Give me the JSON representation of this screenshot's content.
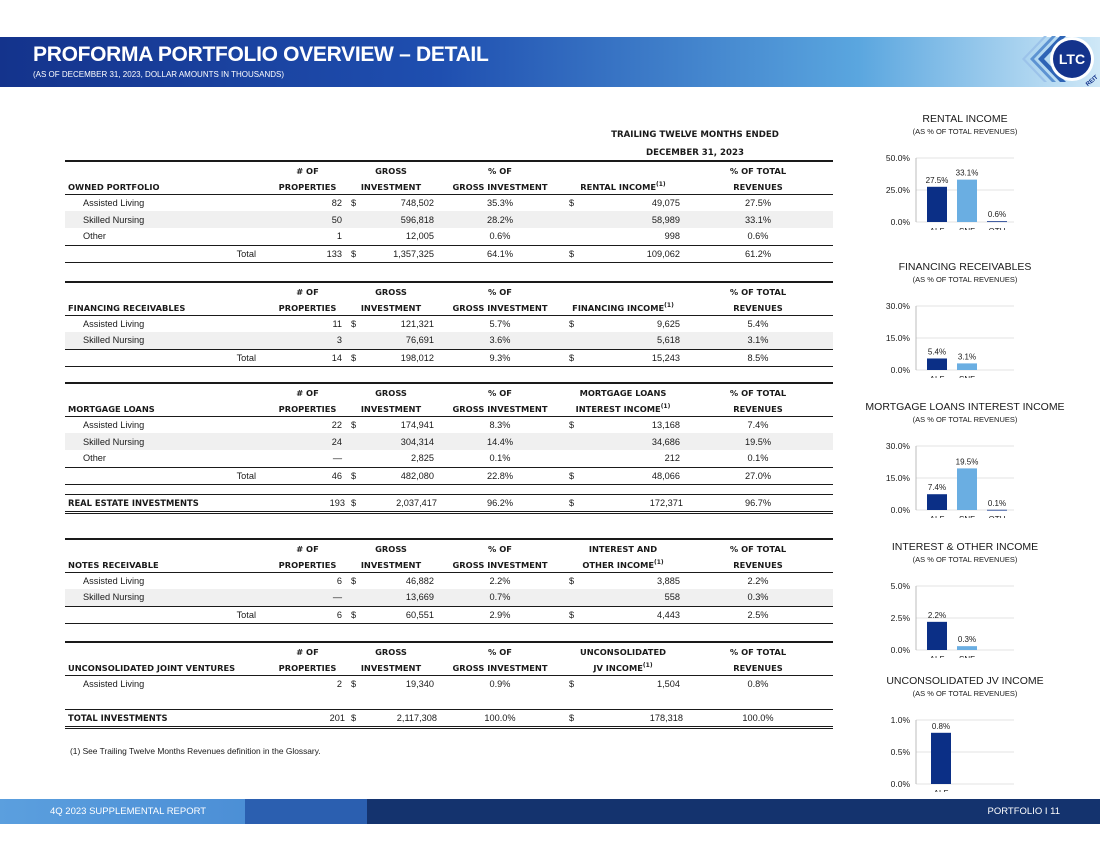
{
  "header": {
    "title": "PROFORMA PORTFOLIO OVERVIEW – DETAIL",
    "subtitle": "(AS OF DECEMBER 31, 2023, DOLLAR AMOUNTS IN THOUSANDS)",
    "logo_text": "LTC",
    "logo_sub": "REIT"
  },
  "ttm_header": [
    "TRAILING TWELVE MONTHS ENDED",
    "DECEMBER 31, 2023"
  ],
  "common_cols": {
    "properties": [
      "# OF",
      "PROPERTIES"
    ],
    "gross_investment": [
      "GROSS",
      "INVESTMENT"
    ],
    "pct_gross": [
      "% OF",
      "GROSS INVESTMENT"
    ],
    "pct_revenues": [
      "% OF TOTAL",
      "REVENUES"
    ],
    "footnote_mark": "(1)"
  },
  "sections": [
    {
      "name": "OWNED PORTFOLIO",
      "income_col": [
        "",
        "RENTAL INCOME"
      ],
      "rows": [
        {
          "label": "Assisted Living",
          "properties": "82",
          "gross": "748,502",
          "pct_gross": "35.3%",
          "income": "49,075",
          "pct_rev": "27.5%",
          "dollar": "$",
          "idollar": "$"
        },
        {
          "label": "Skilled Nursing",
          "properties": "50",
          "gross": "596,818",
          "pct_gross": "28.2%",
          "income": "58,989",
          "pct_rev": "33.1%",
          "dollar": "",
          "idollar": ""
        },
        {
          "label": "Other",
          "properties": "1",
          "gross": "12,005",
          "pct_gross": "0.6%",
          "income": "998",
          "pct_rev": "0.6%",
          "dollar": "",
          "idollar": ""
        }
      ],
      "total": {
        "label": "Total",
        "properties": "133",
        "gross": "1,357,325",
        "pct_gross": "64.1%",
        "income": "109,062",
        "pct_rev": "61.2%",
        "dollar": "$",
        "idollar": "$"
      }
    },
    {
      "name": "FINANCING RECEIVABLES",
      "income_col": [
        "",
        "FINANCING INCOME"
      ],
      "rows": [
        {
          "label": "Assisted Living",
          "properties": "11",
          "gross": "121,321",
          "pct_gross": "5.7%",
          "income": "9,625",
          "pct_rev": "5.4%",
          "dollar": "$",
          "idollar": "$"
        },
        {
          "label": "Skilled Nursing",
          "properties": "3",
          "gross": "76,691",
          "pct_gross": "3.6%",
          "income": "5,618",
          "pct_rev": "3.1%",
          "dollar": "",
          "idollar": ""
        }
      ],
      "total": {
        "label": "Total",
        "properties": "14",
        "gross": "198,012",
        "pct_gross": "9.3%",
        "income": "15,243",
        "pct_rev": "8.5%",
        "dollar": "$",
        "idollar": "$"
      }
    },
    {
      "name": "MORTGAGE LOANS",
      "income_col": [
        "MORTGAGE LOANS",
        "INTEREST INCOME"
      ],
      "rows": [
        {
          "label": "Assisted Living",
          "properties": "22",
          "gross": "174,941",
          "pct_gross": "8.3%",
          "income": "13,168",
          "pct_rev": "7.4%",
          "dollar": "$",
          "idollar": "$"
        },
        {
          "label": "Skilled Nursing",
          "properties": "24",
          "gross": "304,314",
          "pct_gross": "14.4%",
          "income": "34,686",
          "pct_rev": "19.5%",
          "dollar": "",
          "idollar": ""
        },
        {
          "label": "Other",
          "properties": "—",
          "gross": "2,825",
          "pct_gross": "0.1%",
          "income": "212",
          "pct_rev": "0.1%",
          "dollar": "",
          "idollar": ""
        }
      ],
      "total": {
        "label": "Total",
        "properties": "46",
        "gross": "482,080",
        "pct_gross": "22.8%",
        "income": "48,066",
        "pct_rev": "27.0%",
        "dollar": "$",
        "idollar": "$"
      }
    },
    {
      "name": "NOTES RECEIVABLE",
      "income_col": [
        "INTEREST AND",
        "OTHER INCOME"
      ],
      "rows": [
        {
          "label": "Assisted Living",
          "properties": "6",
          "gross": "46,882",
          "pct_gross": "2.2%",
          "income": "3,885",
          "pct_rev": "2.2%",
          "dollar": "$",
          "idollar": "$"
        },
        {
          "label": "Skilled Nursing",
          "properties": "—",
          "gross": "13,669",
          "pct_gross": "0.7%",
          "income": "558",
          "pct_rev": "0.3%",
          "dollar": "",
          "idollar": ""
        }
      ],
      "total": {
        "label": "Total",
        "properties": "6",
        "gross": "60,551",
        "pct_gross": "2.9%",
        "income": "4,443",
        "pct_rev": "2.5%",
        "dollar": "$",
        "idollar": "$"
      }
    },
    {
      "name": "UNCONSOLIDATED JOINT VENTURES",
      "income_col": [
        "UNCONSOLIDATED",
        "JV INCOME"
      ],
      "rows": [
        {
          "label": "Assisted Living",
          "properties": "2",
          "gross": "19,340",
          "pct_gross": "0.9%",
          "income": "1,504",
          "pct_rev": "0.8%",
          "dollar": "$",
          "idollar": "$"
        }
      ]
    }
  ],
  "real_estate": {
    "label": "REAL ESTATE INVESTMENTS",
    "properties": "193",
    "dollar": "$",
    "gross": "2,037,417",
    "pct_gross": "96.2%",
    "idollar": "$",
    "income": "172,371",
    "pct_rev": "96.7%"
  },
  "total_investments": {
    "label": "TOTAL INVESTMENTS",
    "properties": "201",
    "dollar": "$",
    "gross": "2,117,308",
    "pct_gross": "100.0%",
    "idollar": "$",
    "income": "178,318",
    "pct_rev": "100.0%"
  },
  "footnote": "(1)   See Trailing Twelve Months Revenues definition in the Glossary.",
  "chart_data": [
    {
      "type": "bar",
      "title": "RENTAL INCOME",
      "subtitle": "(AS % OF TOTAL REVENUES)",
      "categories": [
        "ALF",
        "SNF",
        "OTH"
      ],
      "values": [
        27.5,
        33.1,
        0.6
      ],
      "labels": [
        "27.5%",
        "33.1%",
        "0.6%"
      ],
      "yticks": [
        "0.0%",
        "25.0%",
        "50.0%"
      ],
      "ylim": [
        0,
        50
      ],
      "colors": [
        "#0b2f86",
        "#6aaee2",
        "#0b2f86"
      ]
    },
    {
      "type": "bar",
      "title": "FINANCING RECEIVABLES",
      "subtitle": "(AS % OF TOTAL REVENUES)",
      "categories": [
        "ALF",
        "SNF"
      ],
      "values": [
        5.4,
        3.1
      ],
      "labels": [
        "5.4%",
        "3.1%"
      ],
      "yticks": [
        "0.0%",
        "15.0%",
        "30.0%"
      ],
      "ylim": [
        0,
        30
      ],
      "colors": [
        "#0b2f86",
        "#6aaee2"
      ]
    },
    {
      "type": "bar",
      "title": "MORTGAGE LOANS INTEREST INCOME",
      "subtitle": "(AS % OF TOTAL REVENUES)",
      "categories": [
        "ALF",
        "SNF",
        "OTH"
      ],
      "values": [
        7.4,
        19.5,
        0.1
      ],
      "labels": [
        "7.4%",
        "19.5%",
        "0.1%"
      ],
      "yticks": [
        "0.0%",
        "15.0%",
        "30.0%"
      ],
      "ylim": [
        0,
        30
      ],
      "colors": [
        "#0b2f86",
        "#6aaee2",
        "#0b2f86"
      ]
    },
    {
      "type": "bar",
      "title": "INTEREST & OTHER INCOME",
      "subtitle": "(AS % OF TOTAL REVENUES)",
      "categories": [
        "ALF",
        "SNF"
      ],
      "values": [
        2.2,
        0.3
      ],
      "labels": [
        "2.2%",
        "0.3%"
      ],
      "yticks": [
        "0.0%",
        "2.5%",
        "5.0%"
      ],
      "ylim": [
        0,
        5
      ],
      "colors": [
        "#0b2f86",
        "#6aaee2"
      ]
    },
    {
      "type": "bar",
      "title": "UNCONSOLIDATED JV INCOME",
      "subtitle": "(AS % OF TOTAL REVENUES)",
      "categories": [
        "ALF"
      ],
      "values": [
        0.8
      ],
      "labels": [
        "0.8%"
      ],
      "yticks": [
        "0.0%",
        "0.5%",
        "1.0%"
      ],
      "ylim": [
        0,
        1
      ],
      "colors": [
        "#0b2f86"
      ]
    }
  ],
  "footer": {
    "left": "4Q 2023 SUPPLEMENTAL REPORT",
    "right": "PORTFOLIO   I   11"
  }
}
